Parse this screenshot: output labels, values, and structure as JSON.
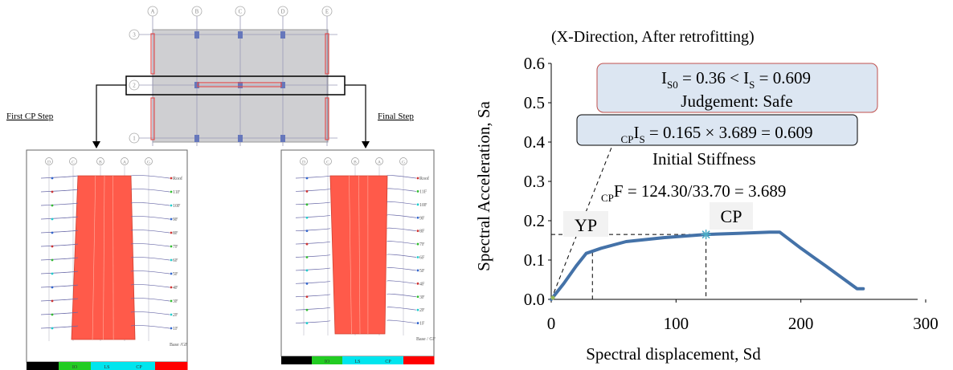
{
  "left_panel": {
    "plan_axes_top": [
      "A",
      "B",
      "C",
      "D",
      "E"
    ],
    "plan_axes_side": [
      "3",
      "2",
      "1"
    ],
    "first_step_label": "First CP Step",
    "final_step_label": "Final Step",
    "elevation_axes": [
      "D",
      "C",
      "B",
      "A",
      "G"
    ],
    "floors": [
      "Roof",
      "11F",
      "10F",
      "9F",
      "8F",
      "7F",
      "6F",
      "5F",
      "4F",
      "3F",
      "2F",
      "1F"
    ],
    "base_left": "Base /GF",
    "base_right": "Base / GF",
    "legend_left": [
      "",
      "IO",
      "LS",
      "CP",
      ""
    ],
    "legend_colors": [
      "#000000",
      "#22cc22",
      "#00e5ee",
      "#00e5ee",
      "#ff0000"
    ],
    "wall_color": "#ff5a4a"
  },
  "chart_data": {
    "type": "line",
    "title": "(X-Direction, After retrofitting)",
    "xlabel": "Spectral displacement, Sd",
    "ylabel": "Spectral Acceleration, Sa",
    "xlim": [
      0,
      300
    ],
    "ylim": [
      0,
      0.6
    ],
    "xticks": [
      0,
      100,
      200,
      300
    ],
    "yticks": [
      "0.0",
      "0.1",
      "0.2",
      "0.3",
      "0.4",
      "0.5",
      "0.6"
    ],
    "series": [
      {
        "color": "#4472a8",
        "x": [
          0,
          10,
          20,
          28,
          40,
          60,
          90,
          124,
          150,
          175,
          183,
          200,
          220,
          245,
          250
        ],
        "y": [
          0,
          0.04,
          0.085,
          0.117,
          0.13,
          0.147,
          0.157,
          0.165,
          0.168,
          0.171,
          0.171,
          0.13,
          0.085,
          0.027,
          0.027
        ]
      }
    ],
    "initial_stiffness_line": {
      "x": [
        0,
        55
      ],
      "y": [
        0,
        0.44
      ]
    },
    "yield_point": {
      "label": "YP",
      "x": 33,
      "y": 0.165
    },
    "cp_point": {
      "label": "CP",
      "x": 124,
      "y": 0.165,
      "marker_color": "#4bacc6"
    },
    "annotations": {
      "box1_is0_sub": "S0",
      "box1_is0_eq": " = 0.36 < I",
      "box1_is_sub": "S",
      "box1_is_eq": " = 0.609",
      "box1_line2": "Judgement: Safe",
      "box2_pre_sub": "CP",
      "box2_is_sub": "S",
      "box2_eq": " = 0.165 × 3.689 = 0.609",
      "stiffness_label": "Initial Stiffness",
      "cpf_sub": "CP",
      "cpf_eq": "F = 124.30/33.70 = 3.689",
      "letter_I": "I"
    }
  }
}
